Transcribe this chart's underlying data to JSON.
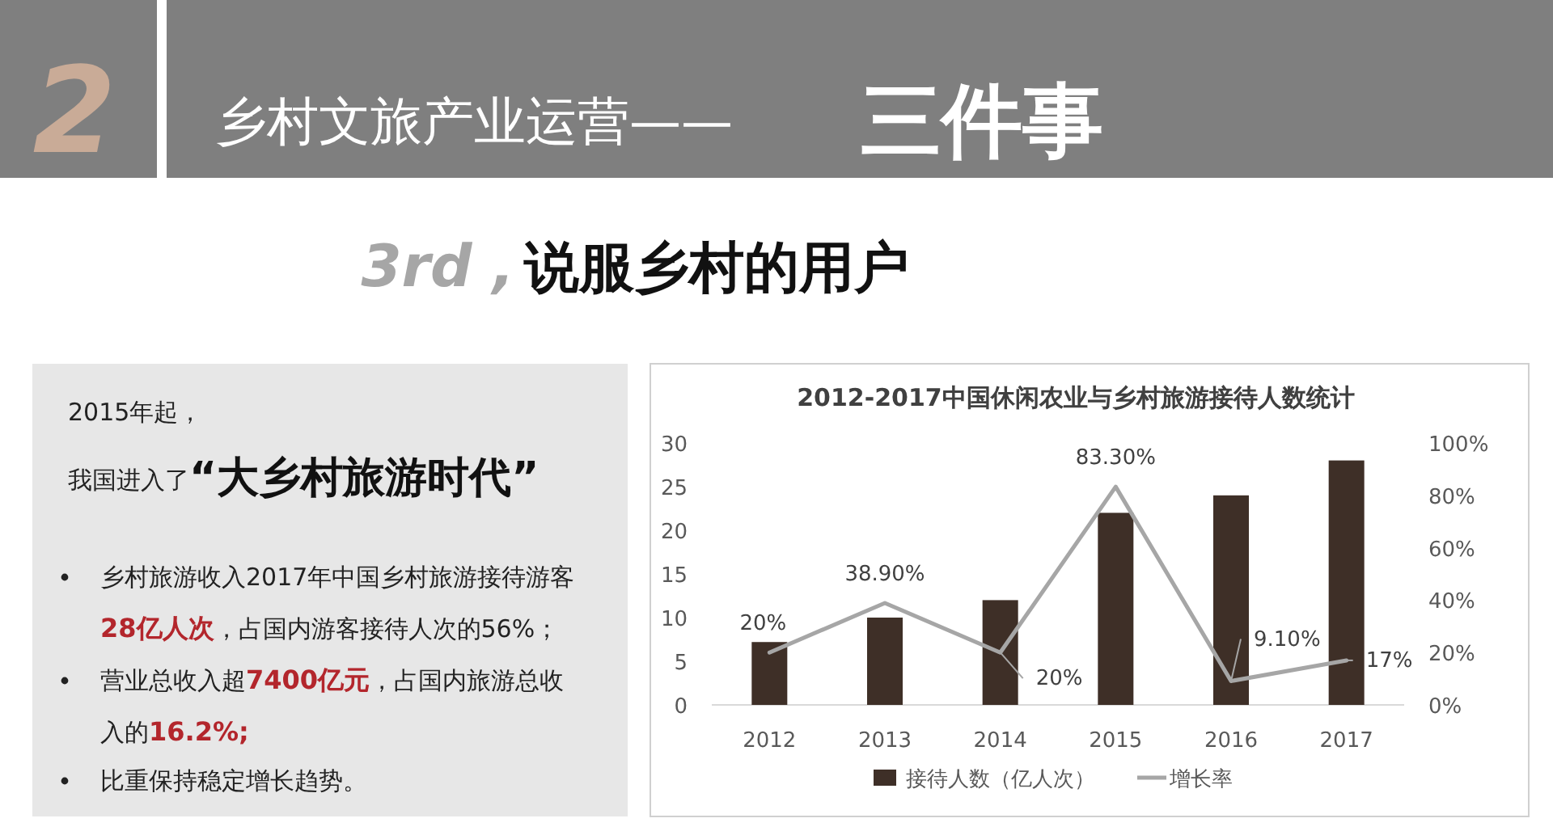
{
  "chart_data": [
    {
      "type": "other",
      "title": "乡村文旅产业运营——",
      "annotations": [
        "2",
        "三件事",
        "3rd ,",
        "说服乡村的用户"
      ]
    },
    {
      "type": "other",
      "annotations": [
        "2015年起，",
        "我国进入了",
        "“大乡村旅游时代”",
        "乡村旅游收入2017年中国乡村旅游接待游客",
        "28亿人次",
        "，占国内游客接待人次的56%；",
        "营业总收入超",
        "7400亿元",
        "，占国内旅游总收",
        "入的",
        "16.2%;",
        "比重保持稳定增长趋势。"
      ]
    },
    {
      "type": "bar",
      "title": "2012-2017中国休闲农业与乡村旅游接待人数统计",
      "categories": [
        "2012",
        "2013",
        "2014",
        "2015",
        "2016",
        "2017"
      ],
      "series": [
        {
          "name": "接待人数（亿人次）",
          "type": "bar",
          "color": "#3e2f27",
          "values": [
            7.2,
            10,
            12,
            22,
            24,
            28
          ]
        },
        {
          "name": "增长率",
          "type": "line",
          "axis": "y2",
          "color": "#a6a6a6",
          "values": [
            20,
            38.9,
            20,
            83.3,
            9.1,
            17
          ],
          "value_labels": [
            "20%",
            "38.90%",
            "20%",
            "83.30%",
            "9.10%",
            "17%"
          ]
        }
      ],
      "ylim": [
        0,
        30
      ],
      "yticks": [
        0,
        5,
        10,
        15,
        20,
        25,
        30
      ],
      "y2lim": [
        0,
        100
      ],
      "y2ticks": [
        {
          "value": 0,
          "label": "0%"
        },
        {
          "value": 20,
          "label": "20%"
        },
        {
          "value": 40,
          "label": "40%"
        },
        {
          "value": 60,
          "label": "60%"
        },
        {
          "value": 80,
          "label": "80%"
        },
        {
          "value": 100,
          "label": "100%"
        }
      ],
      "grid": false,
      "legend": "bottom"
    }
  ]
}
